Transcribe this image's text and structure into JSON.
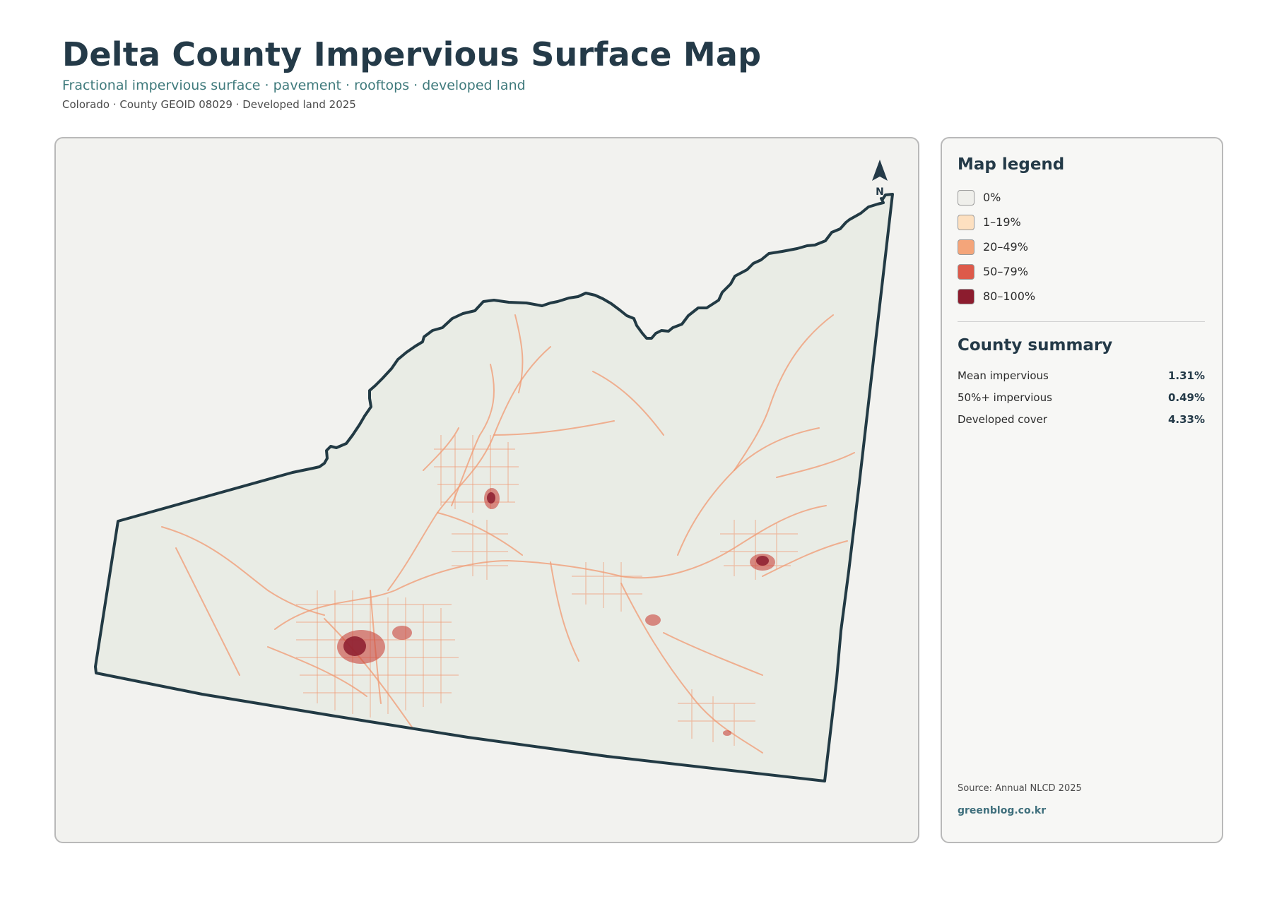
{
  "header": {
    "title": "Delta County Impervious Surface Map",
    "subtitle": "Fractional impervious surface · pavement · rooftops · developed land",
    "meta": "Colorado · County GEOID 08029 · Developed land 2025"
  },
  "map": {
    "north_label": "N",
    "county_fill": "#e9ece5",
    "county_outline": "#223a44",
    "road_color": "#f09a72",
    "urban_color": "#c9443a",
    "core_color": "#8c1c2e"
  },
  "legend": {
    "title": "Map legend",
    "items": [
      {
        "label": "0%",
        "color": "#efefeb"
      },
      {
        "label": "1–19%",
        "color": "#fde0c0"
      },
      {
        "label": "20–49%",
        "color": "#f4a57a"
      },
      {
        "label": "50–79%",
        "color": "#dd5a4a"
      },
      {
        "label": "80–100%",
        "color": "#8c1c2e"
      }
    ]
  },
  "summary": {
    "title": "County summary",
    "rows": [
      {
        "label": "Mean impervious",
        "value": "1.31%"
      },
      {
        "label": "50%+ impervious",
        "value": "0.49%"
      },
      {
        "label": "Developed cover",
        "value": "4.33%"
      }
    ]
  },
  "footer": {
    "source": "Source: Annual NLCD 2025",
    "credit": "greenblog.co.kr"
  }
}
